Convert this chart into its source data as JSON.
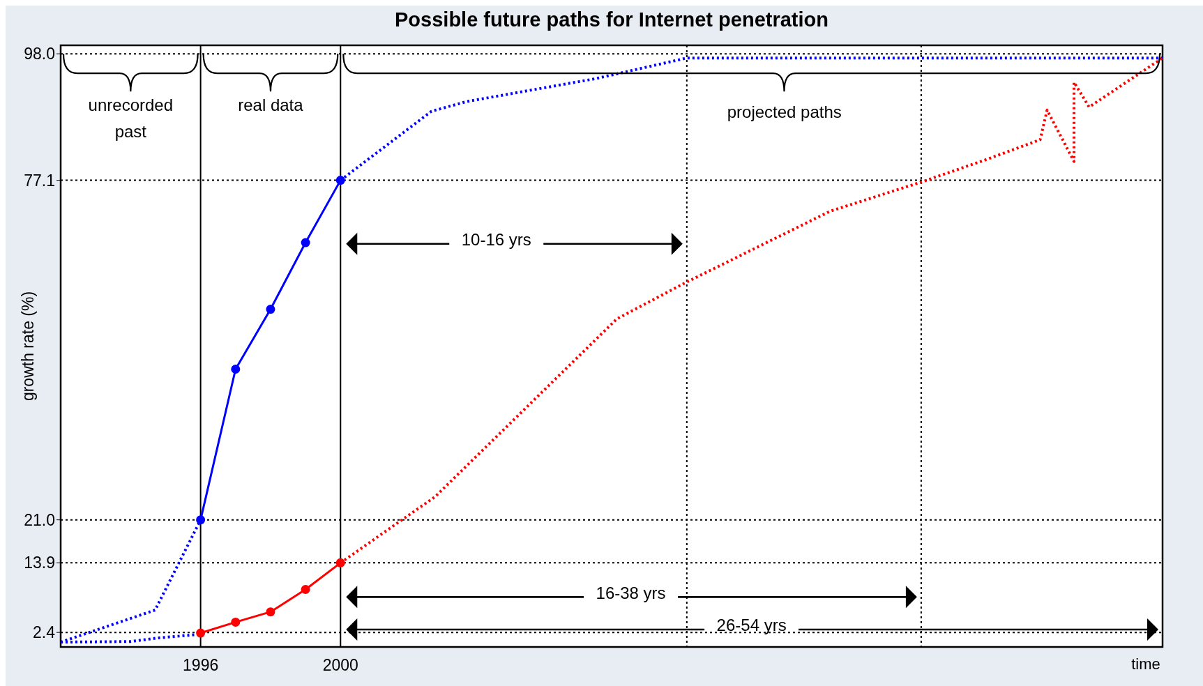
{
  "chart_data": {
    "type": "line",
    "title": "Possible future paths for Internet penetration",
    "ylabel": "growth rate (%)",
    "xlabel": "time",
    "xlim": [
      1992,
      2023.5
    ],
    "xticks": [
      1996,
      2000
    ],
    "ylim": [
      0,
      99.4
    ],
    "yticks": [
      {
        "value": 2.4,
        "label": "2.4"
      },
      {
        "value": 13.9,
        "label": "13.9"
      },
      {
        "value": 21,
        "label": "21.0"
      },
      {
        "value": 77.1,
        "label": "77.1"
      },
      {
        "value": 98,
        "label": "98.0"
      }
    ],
    "grid": false,
    "series": [
      {
        "color": "#0000ff",
        "line_style": "dotted",
        "marker": "none",
        "x": [
          1992,
          1994.7,
          1996
        ],
        "values": [
          0.8,
          6.1,
          21
        ]
      },
      {
        "color": "#0000ff",
        "line_style": "dotted",
        "marker": "none",
        "x": [
          1992,
          1994,
          1994.8,
          1996
        ],
        "values": [
          0.8,
          0.9,
          1.5,
          2.1
        ]
      },
      {
        "color": "#0000ff",
        "line_style": "solid",
        "marker": "circle",
        "x": [
          1996,
          1997,
          1998,
          1999,
          2000
        ],
        "values": [
          21,
          45.9,
          55.8,
          66.8,
          77.1
        ]
      },
      {
        "color": "#0000ff",
        "line_style": "dotted",
        "marker": "none",
        "x": [
          2000,
          2002.6,
          2003.6,
          2007.3,
          2009.9,
          2023.5
        ],
        "values": [
          77.1,
          88.5,
          90.1,
          93.9,
          97.3,
          97.3
        ]
      },
      {
        "color": "#ff0000",
        "line_style": "solid",
        "marker": "circle",
        "x": [
          1996,
          1997,
          1998,
          1999,
          2000
        ],
        "values": [
          2.3,
          4.1,
          5.8,
          9.5,
          13.9
        ]
      },
      {
        "color": "#ff0000",
        "line_style": "dotted",
        "marker": "none",
        "x": [
          2000,
          2002.7,
          2007.9,
          2009.9,
          2014,
          2016.6,
          2018.4,
          2020,
          2020.2,
          2020.97,
          2020.97,
          2021.4,
          2023.5
        ],
        "values": [
          13.9,
          24.8,
          54.2,
          60.3,
          72,
          76.8,
          80.4,
          83.8,
          88.7,
          80.2,
          93.3,
          89.2,
          97.3
        ]
      }
    ],
    "ref_lines": [
      {
        "axis": "x",
        "value": 1996,
        "color": "#000000",
        "line_style": "solid"
      },
      {
        "axis": "x",
        "value": 2000,
        "color": "#000000",
        "line_style": "solid"
      },
      {
        "axis": "x",
        "value": 2009.9,
        "color": "#000000",
        "line_style": "dotted"
      },
      {
        "axis": "x",
        "value": 2016.6,
        "color": "#000000",
        "line_style": "dotted"
      },
      {
        "axis": "y",
        "value": 98,
        "color": "#000000",
        "line_style": "dotted"
      },
      {
        "axis": "y",
        "value": 77.1,
        "color": "#000000",
        "line_style": "dotted"
      },
      {
        "axis": "y",
        "value": 21,
        "color": "#000000",
        "line_style": "dotted"
      },
      {
        "axis": "y",
        "value": 13.9,
        "color": "#000000",
        "line_style": "dotted"
      },
      {
        "axis": "y",
        "value": 2.4,
        "color": "#000000",
        "line_style": "dotted"
      }
    ],
    "annotations": [
      "unrecorded past",
      "real data",
      "projected paths",
      "10-16 yrs",
      "16-38 yrs",
      "26-54 yrs"
    ]
  }
}
